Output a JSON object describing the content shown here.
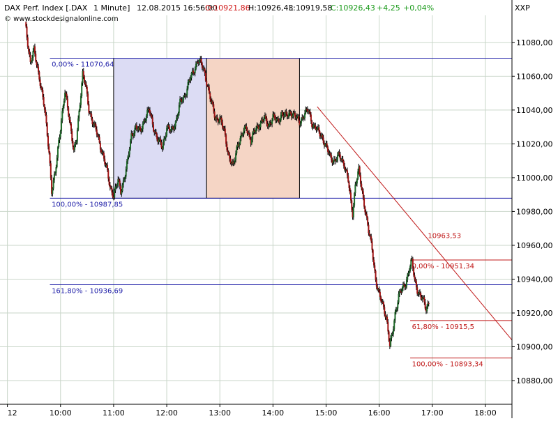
{
  "header": {
    "instrument": "DAX Perf. Index [.DAX",
    "interval": "1 Minute]",
    "datetime": "12.08.2015 16:56:00",
    "open": "O:10921,86",
    "high": "H:10926,43",
    "low": "L:10919,58",
    "close": "C:10926,43",
    "change": "+4,25",
    "change_pct": "+0,04%",
    "watermark": "© www.stockdesignalonline.com",
    "exchange": "XXP"
  },
  "colors": {
    "background": "#ffffff",
    "grid": "#c9d6c9",
    "candle_up": "#1f6a2a",
    "candle_down": "#a01414",
    "wick": "#000000",
    "blue_fib": "#1f1fa8",
    "red_fib": "#c01818",
    "box_blue": "#dcdcf4",
    "box_salmon": "#f5d5c5",
    "close_positive": "#1a9a1a",
    "open_negative": "#d01a1a"
  },
  "chart_data": {
    "type": "candlestick",
    "xlabel": "",
    "ylabel": "",
    "y_axis_side": "right",
    "ylim": [
      10866,
      11096
    ],
    "xlim": [
      "09:20",
      "18:30"
    ],
    "x_ticks": [
      "12",
      "10:00",
      "11:00",
      "12:00",
      "13:00",
      "14:00",
      "15:00",
      "16:00",
      "17:00",
      "18:00"
    ],
    "x_tick_times": [
      "09:00",
      "10:00",
      "11:00",
      "12:00",
      "13:00",
      "14:00",
      "15:00",
      "16:00",
      "17:00",
      "18:00"
    ],
    "y_ticks": [
      "11080,00",
      "11060,00",
      "11040,00",
      "11020,00",
      "11000,00",
      "10980,00",
      "10960,00",
      "10940,00",
      "10920,00",
      "10900,00",
      "10880,00"
    ],
    "y_tick_values": [
      11080,
      11060,
      11040,
      11020,
      11000,
      10980,
      10960,
      10940,
      10920,
      10900,
      10880
    ],
    "grid": true,
    "price_path": [
      [
        "09:20",
        11092
      ],
      [
        "09:26",
        11068
      ],
      [
        "09:30",
        11075
      ],
      [
        "09:36",
        11060
      ],
      [
        "09:42",
        11040
      ],
      [
        "09:47",
        11016
      ],
      [
        "09:50",
        10992
      ],
      [
        "09:54",
        11002
      ],
      [
        "09:58",
        11022
      ],
      [
        "10:02",
        11038
      ],
      [
        "10:05",
        11050
      ],
      [
        "10:08",
        11042
      ],
      [
        "10:12",
        11028
      ],
      [
        "10:15",
        11015
      ],
      [
        "10:18",
        11022
      ],
      [
        "10:22",
        11045
      ],
      [
        "10:25",
        11062
      ],
      [
        "10:28",
        11055
      ],
      [
        "10:32",
        11040
      ],
      [
        "10:36",
        11034
      ],
      [
        "10:40",
        11028
      ],
      [
        "10:44",
        11020
      ],
      [
        "10:48",
        11014
      ],
      [
        "10:52",
        11005
      ],
      [
        "10:56",
        10994
      ],
      [
        "11:00",
        10990
      ],
      [
        "11:05",
        10998
      ],
      [
        "11:08",
        10992
      ],
      [
        "11:12",
        11000
      ],
      [
        "11:16",
        11010
      ],
      [
        "11:20",
        11025
      ],
      [
        "11:25",
        11030
      ],
      [
        "11:30",
        11027
      ],
      [
        "11:35",
        11035
      ],
      [
        "11:40",
        11040
      ],
      [
        "11:45",
        11030
      ],
      [
        "11:50",
        11022
      ],
      [
        "11:55",
        11018
      ],
      [
        "12:00",
        11030
      ],
      [
        "12:05",
        11027
      ],
      [
        "12:10",
        11033
      ],
      [
        "12:15",
        11044
      ],
      [
        "12:20",
        11048
      ],
      [
        "12:25",
        11057
      ],
      [
        "12:30",
        11062
      ],
      [
        "12:35",
        11070
      ],
      [
        "12:38",
        11068
      ],
      [
        "12:42",
        11063
      ],
      [
        "12:46",
        11055
      ],
      [
        "12:50",
        11045
      ],
      [
        "12:55",
        11035
      ],
      [
        "13:00",
        11035
      ],
      [
        "13:05",
        11027
      ],
      [
        "13:10",
        11013
      ],
      [
        "13:15",
        11006
      ],
      [
        "13:20",
        11020
      ],
      [
        "13:25",
        11025
      ],
      [
        "13:30",
        11030
      ],
      [
        "13:35",
        11022
      ],
      [
        "13:40",
        11028
      ],
      [
        "13:45",
        11032
      ],
      [
        "13:50",
        11035
      ],
      [
        "13:55",
        11031
      ],
      [
        "14:00",
        11036
      ],
      [
        "14:05",
        11033
      ],
      [
        "14:10",
        11038
      ],
      [
        "14:15",
        11036
      ],
      [
        "14:20",
        11039
      ],
      [
        "14:25",
        11036
      ],
      [
        "14:30",
        11033
      ],
      [
        "14:35",
        11037
      ],
      [
        "14:40",
        11040
      ],
      [
        "14:45",
        11031
      ],
      [
        "14:50",
        11028
      ],
      [
        "14:55",
        11025
      ],
      [
        "15:00",
        11018
      ],
      [
        "15:05",
        11012
      ],
      [
        "15:10",
        11010
      ],
      [
        "15:15",
        11013
      ],
      [
        "15:20",
        11009
      ],
      [
        "15:25",
        10998
      ],
      [
        "15:28",
        10985
      ],
      [
        "15:30",
        10979
      ],
      [
        "15:33",
        10996
      ],
      [
        "15:37",
        11004
      ],
      [
        "15:40",
        10994
      ],
      [
        "15:44",
        10982
      ],
      [
        "15:48",
        10968
      ],
      [
        "15:52",
        10958
      ],
      [
        "15:56",
        10940
      ],
      [
        "16:00",
        10930
      ],
      [
        "16:04",
        10925
      ],
      [
        "16:08",
        10918
      ],
      [
        "16:12",
        10900
      ],
      [
        "16:15",
        10908
      ],
      [
        "16:18",
        10920
      ],
      [
        "16:22",
        10930
      ],
      [
        "16:26",
        10934
      ],
      [
        "16:30",
        10938
      ],
      [
        "16:34",
        10946
      ],
      [
        "16:37",
        10950
      ],
      [
        "16:40",
        10940
      ],
      [
        "16:43",
        10934
      ],
      [
        "16:46",
        10930
      ],
      [
        "16:50",
        10927
      ],
      [
        "16:53",
        10923
      ],
      [
        "16:56",
        10926.43
      ]
    ],
    "boxes": [
      {
        "name": "blue-range-box",
        "x0": "11:00",
        "x1": "12:45",
        "y0": 10987.85,
        "y1": 11070.64
      },
      {
        "name": "salmon-range-box",
        "x0": "12:45",
        "x1": "14:30",
        "y0": 10987.85,
        "y1": 11070.64
      }
    ],
    "blue_fib_lines": [
      {
        "value": 11070.64,
        "x0": "09:48",
        "x1": "18:30",
        "label": "0,00% - 11070,64",
        "label_x": "09:50"
      },
      {
        "value": 10987.85,
        "x0": "09:48",
        "x1": "18:30",
        "label": "100,00% - 10987,85",
        "label_x": "09:50"
      },
      {
        "value": 10936.69,
        "x0": "09:48",
        "x1": "18:30",
        "label": "161,80% - 10936,69",
        "label_x": "09:50"
      }
    ],
    "red_fib_lines": [
      {
        "value": 10951.34,
        "x0": "16:35",
        "x1": "18:30",
        "label": "0,00% - 10951,34",
        "label_x": "16:37"
      },
      {
        "value": 10915.5,
        "x0": "16:35",
        "x1": "18:30",
        "label": "61,80% - 10915,5",
        "label_x": "16:37"
      },
      {
        "value": 10893.34,
        "x0": "16:35",
        "x1": "18:30",
        "label": "100,00% - 10893,34",
        "label_x": "16:37"
      }
    ],
    "trendline": {
      "x0": "14:50",
      "y0": 11042,
      "x1": "18:30",
      "y1": 10904,
      "label": "10963,53",
      "label_x": "16:55",
      "label_y": 10963.53
    }
  }
}
